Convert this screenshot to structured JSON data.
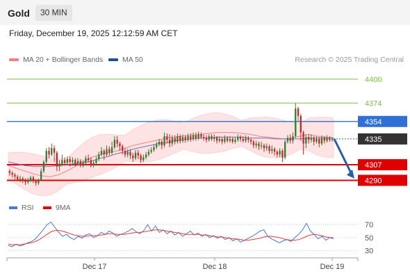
{
  "header": {
    "symbol": "Gold",
    "interval": "30 MIN",
    "datetime": "Friday, December 19, 2025 12:12:59 AM CET"
  },
  "legend": {
    "ma20_label": "MA 20 + Bollinger Bands",
    "ma50_label": "MA 50",
    "credit": "Research © 2025 Trading Central"
  },
  "rsi_legend": {
    "rsi_label": "RSI",
    "ma_label": "9MA"
  },
  "colors": {
    "up": "#2e7d32",
    "down": "#c62828",
    "ma20": "#f08080",
    "band_fill": "#fde3e3",
    "ma50": "#7a6fb3",
    "resistance": "#7cbf44",
    "pivot": "#2f6fd6",
    "support": "#e00000",
    "current": "#333333",
    "arrow": "#2b5ea8",
    "rsi": "#4a78d4",
    "rsi_ma": "#e53935"
  },
  "chart_data": [
    {
      "type": "candlestick",
      "x_tick_labels": [
        "Dec 17",
        "Dec 18",
        "Dec 19"
      ],
      "ylim": [
        4276,
        4412
      ],
      "levels": [
        {
          "value": 4400,
          "label": "4400",
          "kind": "resistance"
        },
        {
          "value": 4374,
          "label": "4374",
          "kind": "resistance"
        },
        {
          "value": 4354,
          "label": "4354",
          "kind": "pivot"
        },
        {
          "value": 4335,
          "label": "4335",
          "kind": "current"
        },
        {
          "value": 4307,
          "label": "4307",
          "kind": "support"
        },
        {
          "value": 4290,
          "label": "4290",
          "kind": "support"
        }
      ],
      "series": [
        {
          "name": "MA 20 + Bollinger Bands",
          "values": [
            4306,
            4303,
            4300,
            4297,
            4295,
            4294,
            4296,
            4300,
            4305,
            4310,
            4315,
            4318,
            4320,
            4322,
            4325,
            4328,
            4330,
            4332,
            4334,
            4336,
            4337,
            4338,
            4339,
            4340,
            4341,
            4342,
            4342,
            4342,
            4341,
            4340,
            4338,
            4337,
            4336,
            4335,
            4336,
            4338,
            4340,
            4338,
            4337,
            4336
          ]
        },
        {
          "name": "MA 50",
          "values": [
            4310,
            4308,
            4306,
            4305,
            4305,
            4305,
            4306,
            4307,
            4308,
            4309,
            4311,
            4314,
            4316,
            4319,
            4321,
            4324,
            4326,
            4328,
            4330,
            4331,
            4333,
            4334,
            4335,
            4336,
            4336,
            4337,
            4337,
            4337,
            4337,
            4336,
            4336,
            4336,
            4335,
            4335,
            4335,
            4335,
            4336,
            4336,
            4336,
            4336
          ]
        }
      ],
      "candles": [
        [
          4300,
          4298,
          4302,
          4295
        ],
        [
          4298,
          4296,
          4300,
          4293
        ],
        [
          4296,
          4294,
          4298,
          4291
        ],
        [
          4294,
          4291,
          4296,
          4289
        ],
        [
          4291,
          4292,
          4295,
          4288
        ],
        [
          4292,
          4290,
          4294,
          4287
        ],
        [
          4290,
          4288,
          4292,
          4285
        ],
        [
          4288,
          4290,
          4293,
          4286
        ],
        [
          4290,
          4293,
          4295,
          4288
        ],
        [
          4293,
          4289,
          4295,
          4287
        ],
        [
          4289,
          4287,
          4291,
          4284
        ],
        [
          4287,
          4290,
          4292,
          4285
        ],
        [
          4290,
          4300,
          4303,
          4289
        ],
        [
          4300,
          4310,
          4312,
          4298
        ],
        [
          4310,
          4322,
          4325,
          4308
        ],
        [
          4322,
          4318,
          4326,
          4314
        ],
        [
          4318,
          4325,
          4330,
          4316
        ],
        [
          4325,
          4320,
          4328,
          4310
        ],
        [
          4320,
          4305,
          4322,
          4300
        ],
        [
          4305,
          4308,
          4312,
          4300
        ],
        [
          4308,
          4312,
          4318,
          4305
        ],
        [
          4312,
          4309,
          4315,
          4306
        ],
        [
          4309,
          4313,
          4316,
          4307
        ],
        [
          4313,
          4310,
          4316,
          4305
        ],
        [
          4310,
          4312,
          4315,
          4306
        ],
        [
          4312,
          4308,
          4314,
          4305
        ],
        [
          4308,
          4311,
          4314,
          4306
        ],
        [
          4311,
          4306,
          4313,
          4304
        ],
        [
          4306,
          4309,
          4312,
          4304
        ],
        [
          4309,
          4314,
          4317,
          4307
        ],
        [
          4314,
          4312,
          4318,
          4309
        ],
        [
          4312,
          4306,
          4315,
          4304
        ],
        [
          4306,
          4309,
          4312,
          4304
        ],
        [
          4309,
          4313,
          4316,
          4306
        ],
        [
          4313,
          4318,
          4321,
          4311
        ],
        [
          4318,
          4322,
          4326,
          4316
        ],
        [
          4322,
          4318,
          4324,
          4312
        ],
        [
          4318,
          4324,
          4328,
          4316
        ],
        [
          4324,
          4320,
          4327,
          4317
        ],
        [
          4320,
          4326,
          4332,
          4318
        ],
        [
          4326,
          4334,
          4338,
          4324
        ],
        [
          4334,
          4330,
          4338,
          4326
        ],
        [
          4330,
          4327,
          4332,
          4322
        ],
        [
          4327,
          4322,
          4329,
          4318
        ],
        [
          4322,
          4318,
          4325,
          4315
        ],
        [
          4318,
          4321,
          4324,
          4315
        ],
        [
          4321,
          4317,
          4324,
          4313
        ],
        [
          4317,
          4314,
          4320,
          4310
        ],
        [
          4314,
          4320,
          4323,
          4312
        ],
        [
          4320,
          4317,
          4323,
          4313
        ],
        [
          4317,
          4312,
          4319,
          4309
        ],
        [
          4312,
          4315,
          4318,
          4310
        ],
        [
          4315,
          4318,
          4321,
          4313
        ],
        [
          4318,
          4321,
          4324,
          4316
        ],
        [
          4321,
          4323,
          4326,
          4319
        ],
        [
          4323,
          4326,
          4329,
          4321
        ],
        [
          4326,
          4329,
          4332,
          4324
        ],
        [
          4329,
          4332,
          4335,
          4327
        ],
        [
          4332,
          4328,
          4334,
          4324
        ],
        [
          4328,
          4338,
          4342,
          4326
        ],
        [
          4338,
          4334,
          4341,
          4330
        ],
        [
          4334,
          4330,
          4340,
          4326
        ],
        [
          4330,
          4336,
          4339,
          4327
        ],
        [
          4336,
          4332,
          4339,
          4329
        ],
        [
          4332,
          4338,
          4341,
          4330
        ],
        [
          4338,
          4333,
          4340,
          4330
        ],
        [
          4333,
          4337,
          4340,
          4331
        ],
        [
          4337,
          4334,
          4339,
          4331
        ],
        [
          4334,
          4338,
          4341,
          4332
        ],
        [
          4338,
          4335,
          4341,
          4332
        ],
        [
          4335,
          4339,
          4342,
          4333
        ],
        [
          4339,
          4336,
          4342,
          4333
        ],
        [
          4336,
          4340,
          4343,
          4334
        ],
        [
          4340,
          4337,
          4342,
          4335
        ],
        [
          4337,
          4336,
          4340,
          4333
        ],
        [
          4336,
          4334,
          4339,
          4331
        ],
        [
          4334,
          4338,
          4340,
          4332
        ],
        [
          4338,
          4335,
          4340,
          4333
        ],
        [
          4335,
          4337,
          4340,
          4332
        ],
        [
          4337,
          4333,
          4338,
          4330
        ],
        [
          4333,
          4335,
          4338,
          4331
        ],
        [
          4335,
          4332,
          4337,
          4329
        ],
        [
          4332,
          4336,
          4339,
          4330
        ],
        [
          4336,
          4333,
          4338,
          4331
        ],
        [
          4333,
          4335,
          4338,
          4331
        ],
        [
          4335,
          4332,
          4337,
          4330
        ],
        [
          4332,
          4334,
          4337,
          4330
        ],
        [
          4334,
          4337,
          4340,
          4332
        ],
        [
          4337,
          4335,
          4339,
          4332
        ],
        [
          4335,
          4333,
          4338,
          4331
        ],
        [
          4333,
          4336,
          4339,
          4331
        ],
        [
          4336,
          4334,
          4338,
          4331
        ],
        [
          4334,
          4332,
          4336,
          4329
        ],
        [
          4332,
          4328,
          4334,
          4325
        ],
        [
          4328,
          4330,
          4333,
          4325
        ],
        [
          4330,
          4327,
          4332,
          4323
        ],
        [
          4327,
          4328,
          4332,
          4324
        ],
        [
          4328,
          4325,
          4330,
          4321
        ],
        [
          4325,
          4327,
          4330,
          4322
        ],
        [
          4327,
          4322,
          4329,
          4319
        ],
        [
          4322,
          4324,
          4328,
          4319
        ],
        [
          4324,
          4321,
          4326,
          4317
        ],
        [
          4321,
          4318,
          4323,
          4315
        ],
        [
          4318,
          4322,
          4325,
          4315
        ],
        [
          4322,
          4315,
          4324,
          4310
        ],
        [
          4315,
          4332,
          4334,
          4313
        ],
        [
          4332,
          4336,
          4339,
          4330
        ],
        [
          4336,
          4333,
          4340,
          4330
        ],
        [
          4333,
          4338,
          4342,
          4330
        ],
        [
          4338,
          4368,
          4374,
          4336
        ],
        [
          4368,
          4360,
          4370,
          4354
        ],
        [
          4360,
          4342,
          4362,
          4333
        ],
        [
          4342,
          4330,
          4344,
          4318
        ],
        [
          4330,
          4337,
          4340,
          4325
        ],
        [
          4337,
          4334,
          4340,
          4330
        ],
        [
          4334,
          4336,
          4340,
          4331
        ],
        [
          4336,
          4332,
          4338,
          4328
        ],
        [
          4332,
          4335,
          4338,
          4330
        ],
        [
          4335,
          4330,
          4337,
          4326
        ],
        [
          4330,
          4336,
          4339,
          4328
        ],
        [
          4336,
          4333,
          4338,
          4330
        ],
        [
          4333,
          4336,
          4339,
          4331
        ],
        [
          4336,
          4334,
          4338,
          4332
        ],
        [
          4334,
          4335,
          4337,
          4332
        ]
      ]
    },
    {
      "type": "line",
      "ylim": [
        22,
        82
      ],
      "y_ticks": [
        70,
        50,
        30
      ],
      "series": [
        {
          "name": "RSI",
          "values": [
            38,
            36,
            40,
            37,
            39,
            42,
            44,
            48,
            55,
            62,
            70,
            74,
            66,
            58,
            52,
            55,
            50,
            47,
            52,
            49,
            54,
            56,
            50,
            53,
            58,
            55,
            60,
            57,
            52,
            55,
            57,
            60,
            64,
            59,
            56,
            61,
            70,
            60,
            68,
            58,
            62,
            56,
            60,
            54,
            58,
            52,
            56,
            60,
            54,
            57,
            52,
            55,
            50,
            53,
            49,
            52,
            47,
            50,
            45,
            48,
            43,
            46,
            49,
            52,
            56,
            60,
            62,
            52,
            48,
            45,
            42,
            45,
            47,
            44,
            50,
            55,
            62,
            72,
            60,
            55,
            48,
            52,
            46,
            50,
            48
          ]
        },
        {
          "name": "9MA",
          "values": [
            40,
            39,
            39,
            39,
            40,
            41,
            42,
            44,
            47,
            51,
            55,
            59,
            61,
            61,
            60,
            58,
            56,
            54,
            53,
            52,
            52,
            53,
            53,
            53,
            54,
            55,
            56,
            56,
            55,
            55,
            55,
            56,
            57,
            58,
            58,
            59,
            60,
            61,
            62,
            62,
            61,
            60,
            59,
            58,
            57,
            56,
            55,
            55,
            55,
            55,
            54,
            54,
            53,
            52,
            51,
            51,
            50,
            49,
            48,
            48,
            47,
            46,
            46,
            47,
            48,
            49,
            51,
            52,
            52,
            51,
            50,
            48,
            47,
            46,
            46,
            47,
            49,
            52,
            54,
            55,
            54,
            53,
            51,
            50,
            50
          ]
        }
      ]
    }
  ]
}
